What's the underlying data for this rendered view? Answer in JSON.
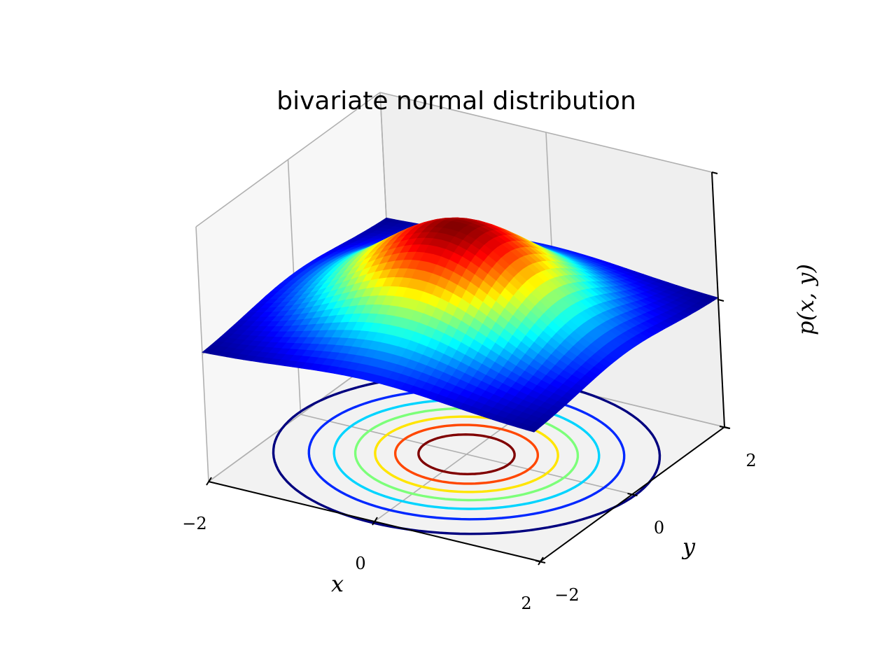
{
  "chart_data": {
    "type": "surface3d",
    "title": "bivariate normal distribution",
    "xlabel": "x",
    "ylabel": "y",
    "zlabel": "p(x, y)",
    "xlim": [
      -2,
      2
    ],
    "ylim": [
      -2,
      2
    ],
    "zlim": [
      -0.2,
      0.2
    ],
    "x_ticks": [
      -2,
      0,
      2
    ],
    "y_ticks": [
      -2,
      0,
      2
    ],
    "x_tick_labels": [
      "−2",
      "0",
      "2"
    ],
    "y_tick_labels": [
      "−2",
      "0",
      "2"
    ],
    "distribution": {
      "mean": [
        0,
        0
      ],
      "sigma_x": 1,
      "sigma_y": 1,
      "rho": 0
    },
    "surface": {
      "grid_n": 40,
      "colormap": "jet"
    },
    "contours": {
      "plane": "bottom",
      "levels": [
        0.02,
        0.04,
        0.06,
        0.08,
        0.1,
        0.12,
        0.14
      ],
      "colors": [
        "#00007f",
        "#0028ff",
        "#00d4ff",
        "#7cff79",
        "#ffe500",
        "#ff4700",
        "#7f0000"
      ]
    },
    "grid": true,
    "pane_color": "#f2f2f2"
  }
}
